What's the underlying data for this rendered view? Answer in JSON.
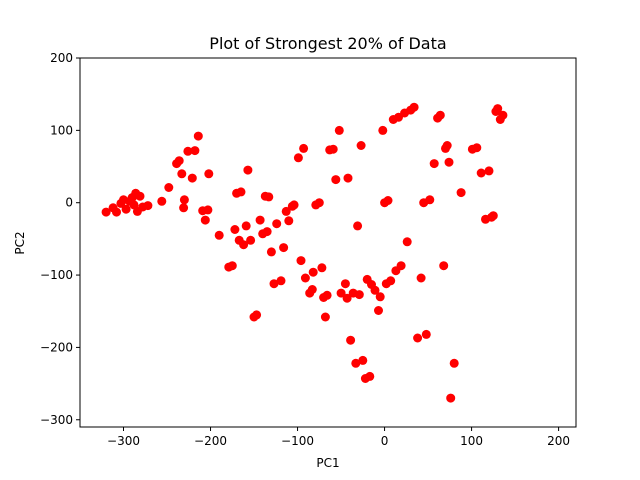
{
  "chart_data": {
    "type": "scatter",
    "title": "Plot of Strongest 20% of Data",
    "xlabel": "PC1",
    "ylabel": "PC2",
    "xlim": [
      -350,
      220
    ],
    "ylim": [
      -310,
      200
    ],
    "xticks": [
      -300,
      -200,
      -100,
      0,
      100,
      200
    ],
    "yticks": [
      -300,
      -200,
      -100,
      0,
      100,
      200
    ],
    "xtick_labels": [
      "−300",
      "−200",
      "−100",
      "0",
      "100",
      "200"
    ],
    "ytick_labels": [
      "−300",
      "−200",
      "−100",
      "0",
      "100",
      "200"
    ],
    "grid": false,
    "marker_color": "#ff0000",
    "series": [
      {
        "x": [
          -320,
          -312,
          -308,
          -303,
          -300,
          -297,
          -293,
          -290,
          -288,
          -286,
          -284,
          -281,
          -278,
          -272,
          -256,
          -248,
          -239,
          -236,
          -233,
          -231,
          -230,
          -226,
          -221,
          -218,
          -214,
          -209,
          -206,
          -203,
          -202,
          -190,
          -179,
          -175,
          -172,
          -170,
          -167,
          -165,
          -162,
          -159,
          -157,
          -154,
          -150,
          -147,
          -143,
          -140,
          -137,
          -135,
          -133,
          -130,
          -127,
          -124,
          -119,
          -116,
          -113,
          -110,
          -106,
          -104,
          -99,
          -96,
          -93,
          -91,
          -86,
          -83,
          -82,
          -79,
          -75,
          -72,
          -70,
          -68,
          -66,
          -63,
          -59,
          -56,
          -52,
          -50,
          -45,
          -43,
          -42,
          -39,
          -36,
          -33,
          -31,
          -29,
          -27,
          -25,
          -22,
          -20,
          -17,
          -15,
          -11,
          -7,
          -5,
          -2,
          0,
          2,
          4,
          7,
          10,
          13,
          16,
          19,
          23,
          26,
          30,
          34,
          38,
          42,
          45,
          48,
          52,
          57,
          61,
          64,
          68,
          70,
          72,
          74,
          76,
          80,
          88,
          101,
          106,
          111,
          116,
          120,
          123,
          125,
          128,
          130,
          133,
          136
        ],
        "y": [
          -13,
          -7,
          -13,
          -1,
          4,
          -9,
          2,
          7,
          -3,
          13,
          -12,
          9,
          -6,
          -4,
          2,
          21,
          54,
          58,
          40,
          -7,
          4,
          71,
          34,
          72,
          92,
          -11,
          -24,
          -10,
          40,
          -45,
          -89,
          -87,
          -37,
          13,
          -52,
          15,
          -58,
          -32,
          45,
          -52,
          -158,
          -155,
          -24,
          -43,
          9,
          -40,
          8,
          -68,
          -112,
          -29,
          -108,
          -62,
          -12,
          -25,
          -5,
          -3,
          62,
          -80,
          75,
          -104,
          -125,
          -120,
          -96,
          -3,
          0,
          -90,
          -131,
          -158,
          -128,
          73,
          74,
          32,
          100,
          -125,
          -112,
          -132,
          34,
          -190,
          -125,
          -222,
          -32,
          -127,
          79,
          -218,
          -243,
          -106,
          -240,
          -113,
          -121,
          -149,
          -130,
          100,
          0,
          -112,
          3,
          -108,
          115,
          -94,
          118,
          -87,
          124,
          -54,
          128,
          132,
          -187,
          -104,
          0,
          -182,
          4,
          54,
          117,
          121,
          -87,
          75,
          79,
          56,
          -270,
          -222,
          14,
          74,
          76,
          41,
          -23,
          44,
          -20,
          -18,
          126,
          130,
          115,
          121
        ]
      }
    ]
  }
}
